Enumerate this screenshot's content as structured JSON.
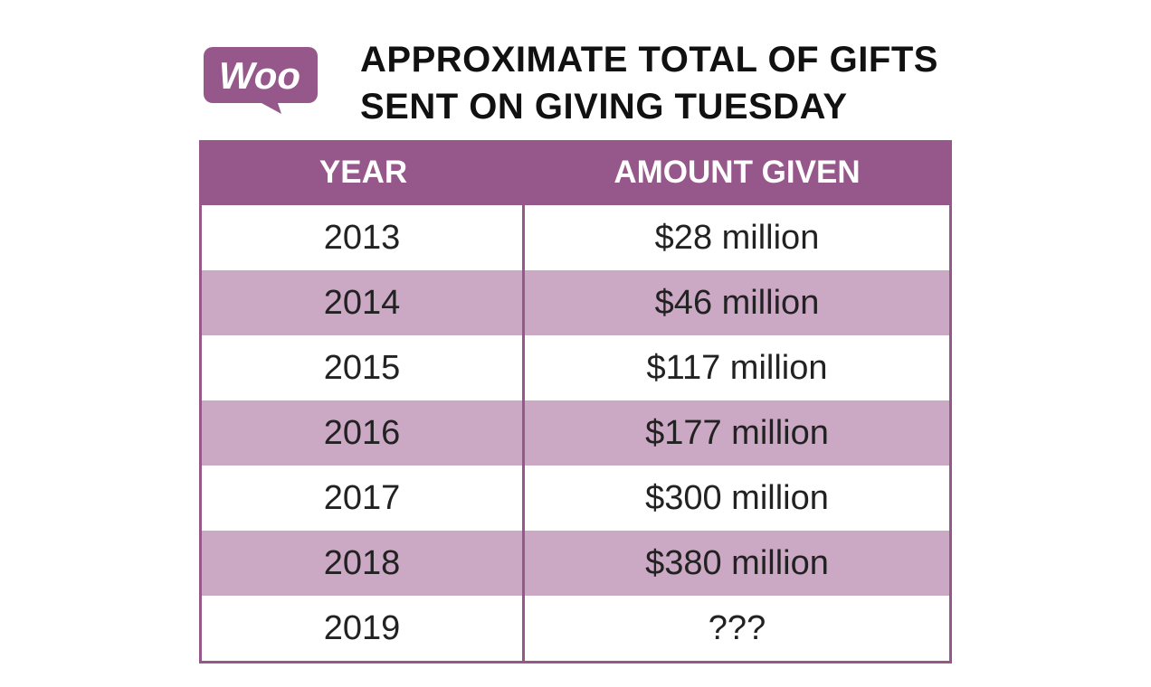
{
  "logo": {
    "text": "Woo",
    "color": "#96588a"
  },
  "title": {
    "line1": "APPROXIMATE TOTAL OF GIFTS",
    "line2": "SENT ON GIVING TUESDAY"
  },
  "colors": {
    "header": "#96588a",
    "stripe": "#cba8c4"
  },
  "chart_data": {
    "type": "table",
    "title": "APPROXIMATE TOTAL OF GIFTS SENT ON GIVING TUESDAY",
    "columns": [
      "YEAR",
      "AMOUNT GIVEN"
    ],
    "rows": [
      [
        "2013",
        "$28 million"
      ],
      [
        "2014",
        "$46 million"
      ],
      [
        "2015",
        "$117 million"
      ],
      [
        "2016",
        "$177 million"
      ],
      [
        "2017",
        "$300 million"
      ],
      [
        "2018",
        "$380 million"
      ],
      [
        "2019",
        "???"
      ]
    ]
  }
}
